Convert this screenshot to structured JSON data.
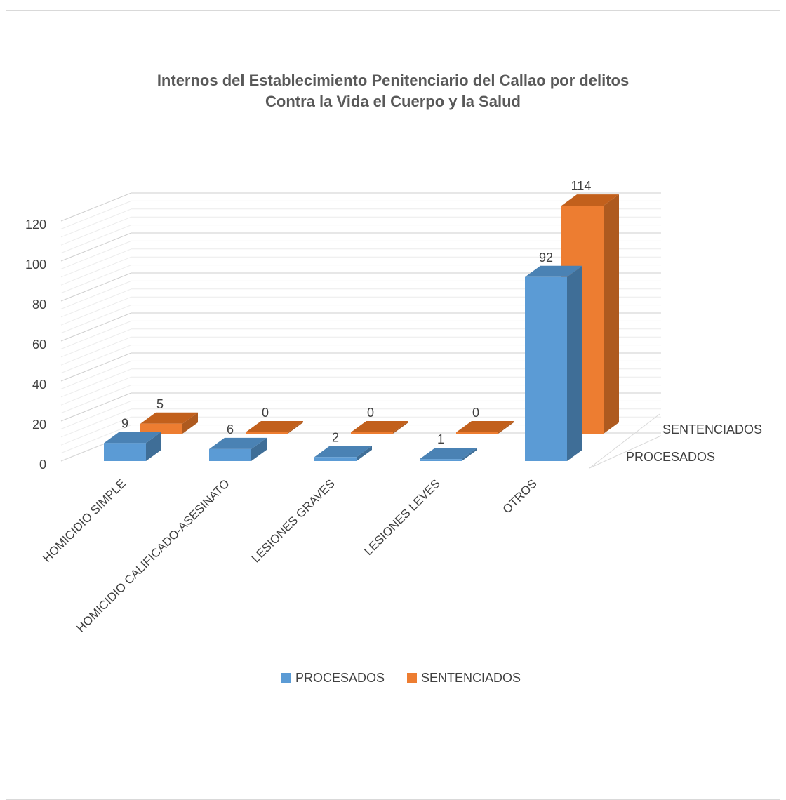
{
  "chart_data": {
    "type": "bar",
    "title_line1": "Internos del Establecimiento Penitenciario del Callao por delitos",
    "title_line2": "Contra la Vida el Cuerpo y la Salud",
    "categories": [
      "HOMICIDIO SIMPLE",
      "HOMICIDIO CALIFICADO-ASESINATO",
      "LESIONES GRAVES",
      "LESIONES LEVES",
      "OTROS"
    ],
    "series": [
      {
        "name": "PROCESADOS",
        "values": [
          9,
          6,
          2,
          1,
          92
        ],
        "color": "#5b9bd5",
        "side_color": "#3f6e97",
        "top_color": "#4a82b4"
      },
      {
        "name": "SENTENCIADOS",
        "values": [
          5,
          0,
          0,
          0,
          114
        ],
        "color": "#ed7d31",
        "side_color": "#ae5a1f",
        "top_color": "#c2601c"
      }
    ],
    "y_ticks": [
      "0",
      "20",
      "40",
      "60",
      "80",
      "100",
      "120"
    ],
    "ylim": [
      0,
      120
    ],
    "depth_labels": [
      "SENTENCIADOS",
      "PROCESADOS"
    ],
    "legend_position": "bottom",
    "grid": true
  }
}
